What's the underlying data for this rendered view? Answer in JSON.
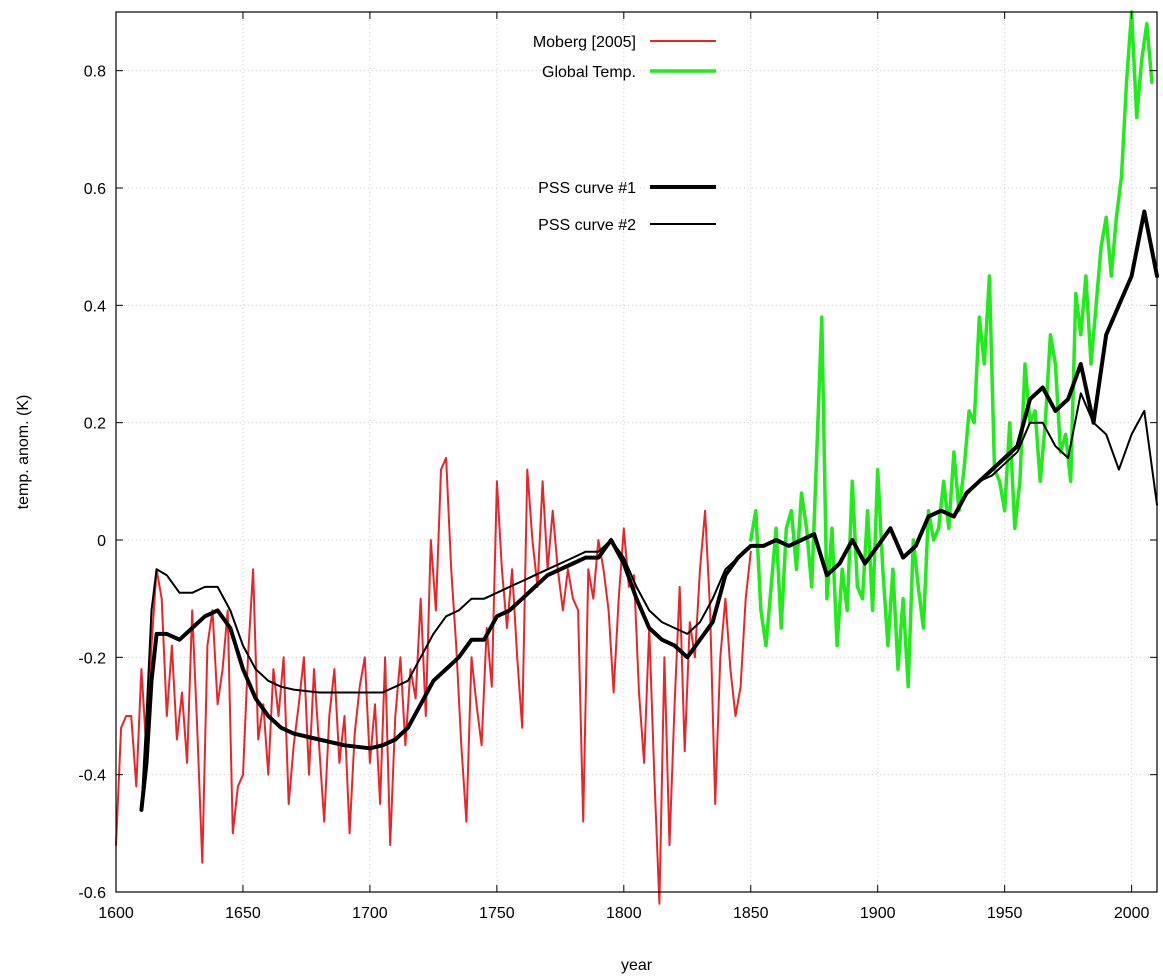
{
  "chart_data": {
    "type": "line",
    "title": "",
    "xlabel": "year",
    "ylabel": "temp. anom.  (K)",
    "xlim": [
      1600,
      2010
    ],
    "ylim": [
      -0.6,
      0.9
    ],
    "xticks": [
      1600,
      1650,
      1700,
      1750,
      1800,
      1850,
      1900,
      1950,
      2000
    ],
    "yticks": [
      -0.6,
      -0.4,
      -0.2,
      0,
      0.2,
      0.4,
      0.6,
      0.8
    ],
    "xtick_labels": [
      "1600",
      "1650",
      "1700",
      "1750",
      "1800",
      "1850",
      "1900",
      "1950",
      "2000"
    ],
    "ytick_labels": [
      "-0.6",
      "-0.4",
      "-0.2",
      "0",
      "0.2",
      "0.4",
      "0.6",
      "0.8"
    ],
    "grid": true,
    "legend": "top-center",
    "series": [
      {
        "name": "Moberg [2005]",
        "color": "#e8262a",
        "x": [
          1600,
          1602,
          1604,
          1606,
          1608,
          1610,
          1612,
          1614,
          1616,
          1618,
          1620,
          1622,
          1624,
          1626,
          1628,
          1630,
          1632,
          1634,
          1636,
          1638,
          1640,
          1642,
          1644,
          1646,
          1648,
          1650,
          1652,
          1654,
          1656,
          1658,
          1660,
          1662,
          1664,
          1666,
          1668,
          1670,
          1672,
          1674,
          1676,
          1678,
          1680,
          1682,
          1684,
          1686,
          1688,
          1690,
          1692,
          1694,
          1696,
          1698,
          1700,
          1702,
          1704,
          1706,
          1708,
          1710,
          1712,
          1714,
          1716,
          1718,
          1720,
          1722,
          1724,
          1726,
          1728,
          1730,
          1732,
          1734,
          1736,
          1738,
          1740,
          1742,
          1744,
          1746,
          1748,
          1750,
          1752,
          1754,
          1756,
          1758,
          1760,
          1762,
          1764,
          1766,
          1768,
          1770,
          1772,
          1774,
          1776,
          1778,
          1780,
          1782,
          1784,
          1786,
          1788,
          1790,
          1792,
          1794,
          1796,
          1798,
          1800,
          1802,
          1804,
          1806,
          1808,
          1810,
          1812,
          1814,
          1816,
          1818,
          1820,
          1822,
          1824,
          1826,
          1828,
          1830,
          1832,
          1834,
          1836,
          1838,
          1840,
          1842,
          1844,
          1846,
          1848,
          1850
        ],
        "y": [
          -0.52,
          -0.32,
          -0.3,
          -0.3,
          -0.42,
          -0.22,
          -0.36,
          -0.18,
          -0.05,
          -0.1,
          -0.3,
          -0.18,
          -0.34,
          -0.26,
          -0.38,
          -0.12,
          -0.32,
          -0.55,
          -0.18,
          -0.12,
          -0.28,
          -0.22,
          -0.12,
          -0.5,
          -0.42,
          -0.4,
          -0.2,
          -0.05,
          -0.34,
          -0.28,
          -0.4,
          -0.22,
          -0.3,
          -0.2,
          -0.45,
          -0.35,
          -0.28,
          -0.2,
          -0.4,
          -0.22,
          -0.35,
          -0.48,
          -0.3,
          -0.22,
          -0.38,
          -0.3,
          -0.5,
          -0.33,
          -0.25,
          -0.2,
          -0.38,
          -0.28,
          -0.45,
          -0.2,
          -0.52,
          -0.3,
          -0.2,
          -0.35,
          -0.22,
          -0.27,
          -0.1,
          -0.3,
          0.0,
          -0.12,
          0.12,
          0.14,
          -0.05,
          -0.18,
          -0.35,
          -0.48,
          -0.2,
          -0.28,
          -0.35,
          -0.15,
          -0.25,
          0.1,
          -0.05,
          -0.15,
          -0.05,
          -0.2,
          -0.32,
          0.12,
          0.0,
          -0.08,
          0.1,
          -0.05,
          0.05,
          -0.05,
          -0.12,
          -0.05,
          -0.1,
          -0.12,
          -0.48,
          -0.05,
          -0.1,
          0.0,
          -0.05,
          -0.12,
          -0.26,
          -0.1,
          0.02,
          -0.08,
          -0.06,
          -0.26,
          -0.38,
          -0.15,
          -0.4,
          -0.62,
          -0.2,
          -0.52,
          -0.28,
          -0.08,
          -0.36,
          -0.14,
          -0.2,
          -0.05,
          0.05,
          -0.12,
          -0.45,
          -0.2,
          -0.1,
          -0.22,
          -0.3,
          -0.25,
          -0.1,
          -0.02
        ]
      },
      {
        "name": "Global Temp.",
        "color": "#22ea1c",
        "x": [
          1850,
          1852,
          1854,
          1856,
          1858,
          1860,
          1862,
          1864,
          1866,
          1868,
          1870,
          1872,
          1874,
          1876,
          1878,
          1880,
          1882,
          1884,
          1886,
          1888,
          1890,
          1892,
          1894,
          1896,
          1898,
          1900,
          1902,
          1904,
          1906,
          1908,
          1910,
          1912,
          1914,
          1916,
          1918,
          1920,
          1922,
          1924,
          1926,
          1928,
          1930,
          1932,
          1934,
          1936,
          1938,
          1940,
          1942,
          1944,
          1946,
          1948,
          1950,
          1952,
          1954,
          1956,
          1958,
          1960,
          1962,
          1964,
          1966,
          1968,
          1970,
          1972,
          1974,
          1976,
          1978,
          1980,
          1982,
          1984,
          1986,
          1988,
          1990,
          1992,
          1994,
          1996,
          1998,
          2000,
          2002,
          2004,
          2006,
          2008
        ],
        "y": [
          0.0,
          0.05,
          -0.12,
          -0.18,
          -0.08,
          0.02,
          -0.15,
          0.02,
          0.05,
          -0.05,
          0.08,
          0.02,
          -0.08,
          0.15,
          0.38,
          -0.1,
          0.02,
          -0.18,
          -0.05,
          -0.12,
          0.1,
          -0.08,
          -0.1,
          0.05,
          -0.12,
          0.12,
          -0.05,
          -0.18,
          -0.05,
          -0.22,
          -0.1,
          -0.25,
          0.0,
          -0.08,
          -0.15,
          0.05,
          0.0,
          0.02,
          0.1,
          0.02,
          0.15,
          0.05,
          0.12,
          0.22,
          0.2,
          0.38,
          0.3,
          0.45,
          0.12,
          0.1,
          0.05,
          0.2,
          0.02,
          0.1,
          0.3,
          0.2,
          0.22,
          0.1,
          0.2,
          0.35,
          0.3,
          0.15,
          0.18,
          0.1,
          0.42,
          0.35,
          0.45,
          0.3,
          0.4,
          0.5,
          0.55,
          0.45,
          0.55,
          0.62,
          0.78,
          0.9,
          0.72,
          0.82,
          0.88,
          0.78
        ]
      },
      {
        "name": "PSS curve #1",
        "color": "#000000",
        "x": [
          1610,
          1612,
          1614,
          1616,
          1620,
          1625,
          1630,
          1635,
          1640,
          1645,
          1650,
          1655,
          1660,
          1665,
          1670,
          1680,
          1690,
          1700,
          1705,
          1710,
          1715,
          1720,
          1725,
          1730,
          1735,
          1740,
          1745,
          1750,
          1755,
          1760,
          1765,
          1770,
          1775,
          1780,
          1785,
          1790,
          1795,
          1800,
          1805,
          1810,
          1815,
          1820,
          1825,
          1830,
          1835,
          1840,
          1845,
          1850,
          1855,
          1860,
          1865,
          1870,
          1875,
          1880,
          1885,
          1890,
          1895,
          1900,
          1905,
          1910,
          1915,
          1920,
          1925,
          1930,
          1935,
          1940,
          1945,
          1950,
          1955,
          1960,
          1965,
          1970,
          1975,
          1980,
          1985,
          1990,
          1995,
          2000,
          2005,
          2010
        ],
        "y": [
          -0.46,
          -0.38,
          -0.24,
          -0.16,
          -0.16,
          -0.17,
          -0.15,
          -0.13,
          -0.12,
          -0.15,
          -0.22,
          -0.27,
          -0.3,
          -0.32,
          -0.33,
          -0.34,
          -0.35,
          -0.355,
          -0.35,
          -0.34,
          -0.32,
          -0.28,
          -0.24,
          -0.22,
          -0.2,
          -0.17,
          -0.17,
          -0.13,
          -0.12,
          -0.1,
          -0.08,
          -0.06,
          -0.05,
          -0.04,
          -0.03,
          -0.03,
          0.0,
          -0.04,
          -0.1,
          -0.15,
          -0.17,
          -0.18,
          -0.2,
          -0.17,
          -0.14,
          -0.06,
          -0.03,
          -0.01,
          -0.01,
          0.0,
          -0.01,
          0.0,
          0.01,
          -0.06,
          -0.04,
          0.0,
          -0.04,
          -0.01,
          0.02,
          -0.03,
          -0.01,
          0.04,
          0.05,
          0.04,
          0.08,
          0.1,
          0.12,
          0.14,
          0.16,
          0.24,
          0.26,
          0.22,
          0.24,
          0.3,
          0.2,
          0.35,
          0.4,
          0.45,
          0.56,
          0.45
        ]
      },
      {
        "name": "PSS curve #2",
        "color": "#000000",
        "x": [
          1610,
          1612,
          1614,
          1616,
          1620,
          1625,
          1630,
          1635,
          1640,
          1645,
          1650,
          1655,
          1660,
          1665,
          1670,
          1680,
          1690,
          1700,
          1705,
          1710,
          1715,
          1720,
          1725,
          1730,
          1735,
          1740,
          1745,
          1750,
          1755,
          1760,
          1765,
          1770,
          1775,
          1780,
          1785,
          1790,
          1795,
          1800,
          1805,
          1810,
          1815,
          1820,
          1825,
          1830,
          1835,
          1840,
          1845,
          1850,
          1855,
          1860,
          1865,
          1870,
          1875,
          1880,
          1885,
          1890,
          1895,
          1900,
          1905,
          1910,
          1915,
          1920,
          1925,
          1930,
          1935,
          1940,
          1945,
          1950,
          1955,
          1960,
          1965,
          1970,
          1975,
          1980,
          1985,
          1990,
          1995,
          2000,
          2005,
          2010
        ],
        "y": [
          -0.46,
          -0.3,
          -0.12,
          -0.05,
          -0.06,
          -0.09,
          -0.09,
          -0.08,
          -0.08,
          -0.12,
          -0.18,
          -0.22,
          -0.24,
          -0.25,
          -0.255,
          -0.26,
          -0.26,
          -0.26,
          -0.26,
          -0.25,
          -0.24,
          -0.2,
          -0.16,
          -0.13,
          -0.12,
          -0.1,
          -0.1,
          -0.09,
          -0.08,
          -0.07,
          -0.06,
          -0.05,
          -0.04,
          -0.03,
          -0.02,
          -0.02,
          0.0,
          -0.03,
          -0.08,
          -0.12,
          -0.14,
          -0.15,
          -0.16,
          -0.14,
          -0.1,
          -0.05,
          -0.03,
          -0.01,
          -0.01,
          0.0,
          -0.01,
          0.0,
          0.01,
          -0.06,
          -0.04,
          0.0,
          -0.04,
          -0.01,
          0.02,
          -0.03,
          -0.01,
          0.04,
          0.05,
          0.04,
          0.08,
          0.1,
          0.11,
          0.13,
          0.15,
          0.2,
          0.2,
          0.16,
          0.14,
          0.25,
          0.2,
          0.18,
          0.12,
          0.18,
          0.22,
          0.06
        ]
      }
    ]
  }
}
